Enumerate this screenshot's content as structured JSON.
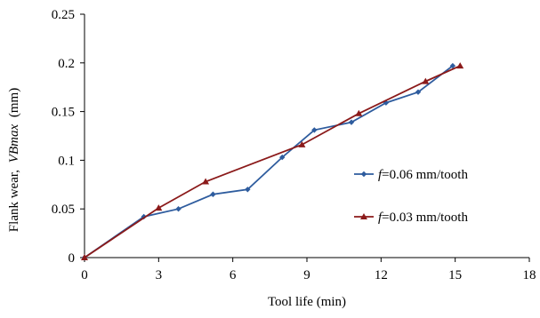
{
  "chart_data": {
    "type": "line",
    "title": "",
    "xlabel": "Tool life (min)",
    "ylabel_prefix": "Flank wear,",
    "ylabel_var": "VBmax",
    "ylabel_unit": "(mm)",
    "xlim": [
      0,
      18
    ],
    "ylim": [
      0,
      0.25
    ],
    "x_ticks": [
      0,
      3,
      6,
      9,
      12,
      15,
      18
    ],
    "x_tick_labels": [
      "0",
      "3",
      "6",
      "9",
      "12",
      "15",
      "18"
    ],
    "y_ticks": [
      0,
      0.05,
      0.1,
      0.15,
      0.2,
      0.25
    ],
    "y_tick_labels": [
      "0",
      "0.05",
      "0.1",
      "0.15",
      "0.2",
      "0.25"
    ],
    "grid": false,
    "legend_position": "right",
    "series": [
      {
        "name": "f=0.06 mm/tooth",
        "legend_var": "f",
        "legend_rest": "=0.06 mm/tooth",
        "color": "#2E5C9E",
        "marker": "diamond",
        "x": [
          0,
          2.4,
          3.8,
          5.2,
          6.6,
          8.0,
          9.3,
          10.8,
          12.2,
          13.5,
          14.9
        ],
        "y": [
          0,
          0.042,
          0.05,
          0.065,
          0.07,
          0.103,
          0.131,
          0.139,
          0.159,
          0.17,
          0.197
        ]
      },
      {
        "name": "f=0.03 mm/tooth",
        "legend_var": "f",
        "legend_rest": "=0.03 mm/tooth",
        "color": "#8B1A1A",
        "marker": "triangle",
        "x": [
          0,
          3.0,
          4.9,
          8.8,
          11.1,
          13.8,
          15.2
        ],
        "y": [
          0,
          0.051,
          0.078,
          0.116,
          0.148,
          0.181,
          0.197
        ]
      }
    ]
  }
}
